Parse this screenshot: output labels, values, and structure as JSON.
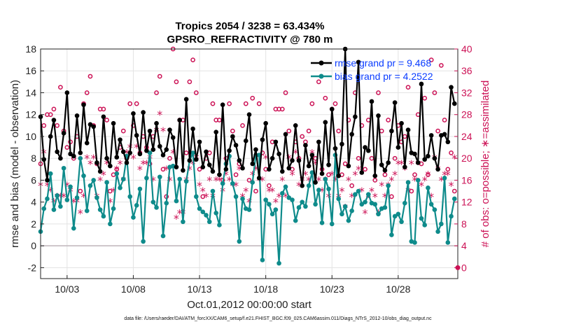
{
  "chart_data": {
    "type": "line",
    "title": "Tropics 2054 / 3238 = 63.434%",
    "subtitle": "GPSRO_REFRACTIVITY @ 780 m",
    "xlabel": "Oct.01,2012 00:00:00 start",
    "ylabel": "rmse and bias (model - observation)",
    "ylabel_right": "# of obs: o=possible; ∗=assimilated",
    "footnote": "data file: /Users/raeder/DAI/ATM_forcXX/CAM6_setup/f.e21.FHIST_BGC.f09_025.CAM6assim.011/Diags_NTrS_2012-10/obs_diag_output.nc",
    "x_ticks": [
      3,
      8,
      13,
      18,
      23,
      28
    ],
    "x_tick_labels": [
      "10/03",
      "10/08",
      "10/13",
      "10/18",
      "10/23",
      "10/28"
    ],
    "xlim": [
      1,
      32.5
    ],
    "ylim": [
      -3,
      18
    ],
    "y_ticks": [
      -2,
      0,
      2,
      4,
      6,
      8,
      10,
      12,
      14,
      16,
      18
    ],
    "y2lim": [
      -2,
      40
    ],
    "y2_ticks": [
      0,
      4,
      8,
      12,
      16,
      20,
      24,
      28,
      32,
      36,
      40
    ],
    "grid": true,
    "legend_position": "top-right",
    "colors": {
      "rmse": "#000000",
      "bias": "#0e8b8b",
      "obs": "#cc1155",
      "zero": "#bfb5bb"
    },
    "x": [
      1.0,
      1.25,
      1.5,
      1.75,
      2.0,
      2.25,
      2.5,
      2.75,
      3.0,
      3.25,
      3.5,
      3.75,
      4.0,
      4.25,
      4.5,
      4.75,
      5.0,
      5.25,
      5.5,
      5.75,
      6.0,
      6.25,
      6.5,
      6.75,
      7.0,
      7.25,
      7.5,
      7.75,
      8.0,
      8.25,
      8.5,
      8.75,
      9.0,
      9.25,
      9.5,
      9.75,
      10.0,
      10.25,
      10.5,
      10.75,
      11.0,
      11.25,
      11.5,
      11.75,
      12.0,
      12.25,
      12.5,
      12.75,
      13.0,
      13.25,
      13.5,
      13.75,
      14.0,
      14.25,
      14.5,
      14.75,
      15.0,
      15.25,
      15.5,
      15.75,
      16.0,
      16.25,
      16.5,
      16.75,
      17.0,
      17.25,
      17.5,
      17.75,
      18.0,
      18.25,
      18.5,
      18.75,
      19.0,
      19.25,
      19.5,
      19.75,
      20.0,
      20.25,
      20.5,
      20.75,
      21.0,
      21.25,
      21.5,
      21.75,
      22.0,
      22.25,
      22.5,
      22.75,
      23.0,
      23.25,
      23.5,
      23.75,
      24.0,
      24.25,
      24.5,
      24.75,
      25.0,
      25.25,
      25.5,
      25.75,
      26.0,
      26.25,
      26.5,
      26.75,
      27.0,
      27.25,
      27.5,
      27.75,
      28.0,
      28.25,
      28.5,
      28.75,
      29.0,
      29.25,
      29.5,
      29.75,
      30.0,
      30.25,
      30.5,
      30.75,
      31.0,
      31.25,
      31.5,
      31.75,
      32.0,
      32.25
    ],
    "series": [
      {
        "name": "rmse grand pr = 9.468",
        "values": [
          11.8,
          7.9,
          6.0,
          10.0,
          11.5,
          8.6,
          8.0,
          10.3,
          14.0,
          8.4,
          8.2,
          11.9,
          8.5,
          12.9,
          9.4,
          11.1,
          10.9,
          7.6,
          6.8,
          11.8,
          8.0,
          7.3,
          11.2,
          8.1,
          9.7,
          8.6,
          7.6,
          8.5,
          12.1,
          10.1,
          8.4,
          12.2,
          8.7,
          10.5,
          8.8,
          11.2,
          9.1,
          8.3,
          8.8,
          10.6,
          9.9,
          7.2,
          11.5,
          6.9,
          13.4,
          7.8,
          10.7,
          7.9,
          9.5,
          7.2,
          8.6,
          7.4,
          6.8,
          10.4,
          6.5,
          12.9,
          7.0,
          8.7,
          10.0,
          9.2,
          7.8,
          7.1,
          9.6,
          12.0,
          7.5,
          8.8,
          6.2,
          9.7,
          11.2,
          7.0,
          8.0,
          9.5,
          8.4,
          6.8,
          10.2,
          7.1,
          7.8,
          11.0,
          7.8,
          5.5,
          9.2,
          7.3,
          8.3,
          5.8,
          9.5,
          6.6,
          11.3,
          7.4,
          12.5,
          8.9,
          6.4,
          9.3,
          18.0,
          7.3,
          10.2,
          11.8,
          16.8,
          6.7,
          9.0,
          8.7,
          13.2,
          6.4,
          11.9,
          7.4,
          6.9,
          7.6,
          10.5,
          13.1,
          9.0,
          11.2,
          7.2,
          10.6,
          8.5,
          8.4,
          7.6,
          14.8,
          7.9,
          8.2,
          10.1,
          8.0,
          7.0,
          10.1,
          10.2,
          9.5,
          14.5,
          13.0
        ],
        "values_b": [],
        "marker": "dot"
      },
      {
        "name": "bias grand pr = 4.2522",
        "values": [
          1.3,
          3.4,
          4.3,
          6.6,
          3.3,
          4.6,
          3.6,
          7.1,
          4.2,
          5.4,
          1.6,
          4.4,
          8.0,
          6.4,
          3.2,
          5.5,
          6.0,
          4.4,
          3.3,
          2.7,
          5.8,
          2.0,
          3.4,
          6.6,
          5.3,
          6.1,
          8.2,
          4.5,
          2.6,
          3.7,
          5.2,
          0.4,
          6.2,
          8.5,
          4.0,
          3.5,
          6.3,
          0.9,
          3.9,
          7.2,
          7.3,
          4.1,
          6.1,
          2.2,
          5.9,
          7.8,
          8.5,
          4.5,
          3.4,
          3.1,
          2.8,
          2.2,
          5.0,
          3.0,
          1.9,
          5.7,
          7.5,
          8.2,
          5.7,
          4.5,
          0.4,
          4.3,
          3.4,
          3.3,
          5.8,
          8.3,
          8.3,
          -1.3,
          4.2,
          3.8,
          2.9,
          3.3,
          -1.6,
          4.8,
          5.4,
          4.4,
          4.2,
          2.3,
          3.5,
          4.0,
          3.6,
          5.5,
          6.7,
          3.8,
          5.1,
          2.1,
          6.1,
          5.2,
          2.0,
          8.3,
          4.3,
          2.9,
          3.6,
          2.3,
          3.2,
          4.7,
          5.0,
          3.8,
          4.0,
          4.7,
          3.9,
          3.8,
          2.9,
          3.4,
          3.5,
          5.5,
          1.0,
          2.7,
          2.9,
          2.2,
          3.9,
          5.8,
          0.4,
          0.3,
          6.0,
          2.5,
          1.9,
          5.3,
          3.8,
          3.3,
          1.3,
          2.0,
          6.2,
          0.3,
          2.7,
          4.3
        ],
        "marker": "dot"
      },
      {
        "name": "obs possible",
        "marker": "o",
        "values": [
          19,
          26,
          28,
          28,
          29,
          26,
          33,
          25,
          22,
          23,
          20,
          24,
          14,
          30,
          32,
          35,
          26,
          19,
          29,
          29,
          27,
          14,
          17,
          18,
          22,
          25,
          20,
          30,
          26,
          30,
          21,
          24,
          22,
          19,
          24,
          32,
          35,
          18,
          13,
          20,
          40,
          34,
          27,
          27,
          21,
          34,
          38,
          32,
          18,
          13,
          20,
          21,
          30,
          27,
          27,
          16,
          20,
          30,
          25,
          17,
          19,
          26,
          30,
          16,
          31,
          14,
          30,
          21,
          18,
          15,
          23,
          29,
          29,
          29,
          32,
          25,
          18,
          23,
          20,
          24,
          23,
          25,
          30,
          20,
          34,
          18,
          31,
          17,
          29,
          30,
          25,
          17,
          19,
          27,
          15,
          32,
          20,
          26,
          18,
          27,
          20,
          16,
          32,
          25,
          17,
          27,
          13,
          20,
          26,
          23,
          24,
          33,
          14,
          17,
          28,
          19,
          31,
          17,
          38,
          32,
          25,
          37,
          27,
          18,
          21,
          14
        ],
        "marker_b": "o"
      },
      {
        "name": "obs assimilated",
        "marker": "*",
        "values": [
          15,
          21,
          15,
          14,
          12,
          13,
          13,
          13,
          15,
          14,
          12,
          12,
          10,
          13,
          20,
          19,
          20,
          13,
          16,
          17,
          19,
          12,
          14,
          18,
          19,
          16,
          21,
          22,
          20,
          22,
          18,
          19,
          19,
          20,
          16,
          25,
          28,
          25,
          18,
          16,
          21,
          9,
          10,
          10,
          16,
          18,
          19,
          20,
          15,
          14,
          13,
          16,
          13,
          16,
          16,
          14,
          17,
          16,
          15,
          15,
          18,
          13,
          14,
          12,
          17,
          18,
          16,
          16,
          20,
          14,
          14,
          12,
          13,
          16,
          13,
          20,
          17,
          21,
          15,
          16,
          17,
          16,
          21,
          19,
          16,
          14,
          16,
          13,
          17,
          16,
          13,
          14,
          11,
          16,
          13,
          17,
          18,
          14,
          10,
          13,
          14,
          13,
          10,
          15,
          13,
          15,
          16,
          17,
          19,
          19,
          18,
          14,
          19,
          16,
          19,
          15,
          16,
          17,
          13,
          20,
          18,
          16,
          17,
          17,
          15,
          20
        ]
      }
    ]
  }
}
